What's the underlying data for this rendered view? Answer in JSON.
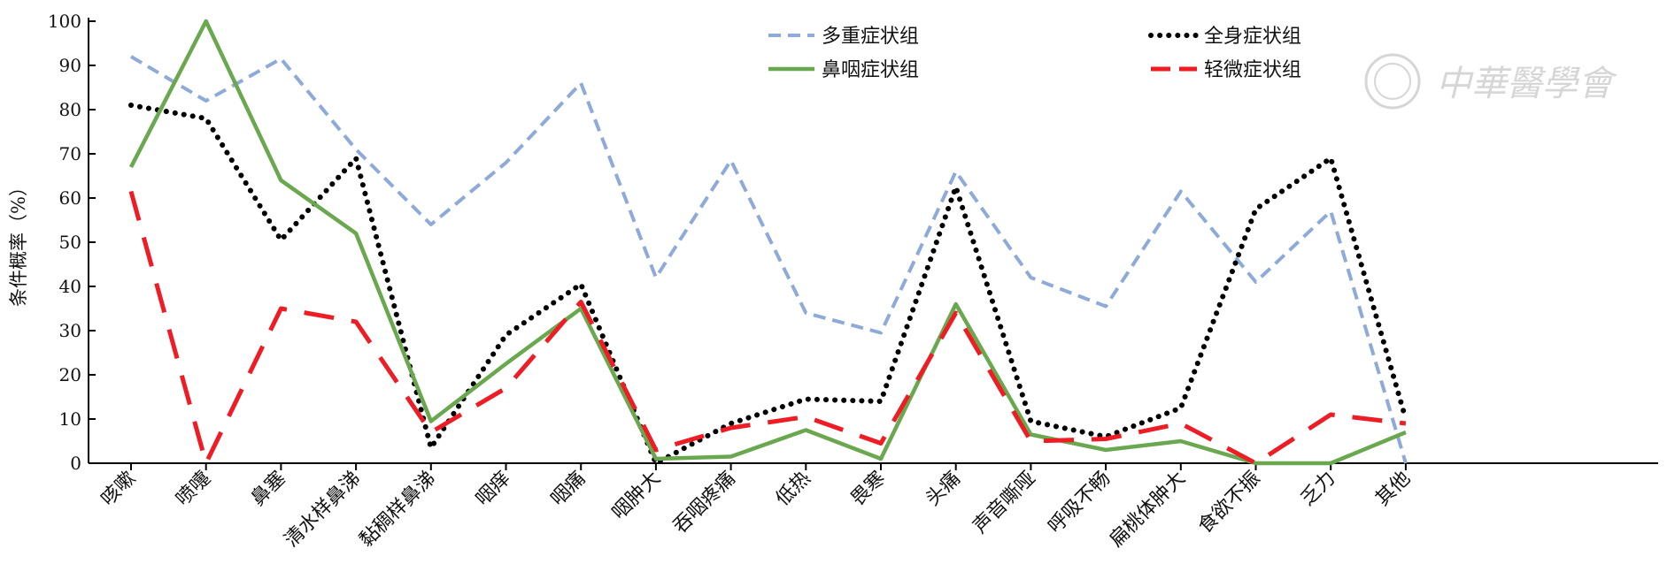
{
  "chart_data": {
    "type": "line",
    "ylabel": "条件概率（%）",
    "ylim": [
      0,
      100
    ],
    "yticks": [
      0,
      10,
      20,
      30,
      40,
      50,
      60,
      70,
      80,
      90,
      100
    ],
    "categories": [
      "咳嗽",
      "喷嚏",
      "鼻塞",
      "清水样鼻涕",
      "黏稠样鼻涕",
      "咽痒",
      "咽痛",
      "咽肿大",
      "吞咽疼痛",
      "低热",
      "畏寒",
      "头痛",
      "声音嘶哑",
      "呼吸不畅",
      "扁桃体肿大",
      "食欲不振",
      "乏力",
      "其他"
    ],
    "legend_position": "top-center",
    "grid": false,
    "series": [
      {
        "name": "多重症状组",
        "color": "#8eaad8",
        "style": "dashed",
        "values": [
          92,
          82,
          91.5,
          71,
          54,
          68,
          86,
          42,
          68.5,
          34,
          29.5,
          66,
          42,
          35.5,
          61.5,
          41,
          57,
          0
        ]
      },
      {
        "name": "全身症状组",
        "color": "#000000",
        "style": "dotted",
        "values": [
          81,
          78,
          50.5,
          69,
          3.5,
          29,
          40.5,
          0,
          9,
          14.5,
          14,
          62.5,
          9.5,
          6,
          12.5,
          57.5,
          69,
          10
        ]
      },
      {
        "name": "鼻咽症状组",
        "color": "#6aa84f",
        "style": "solid",
        "values": [
          67,
          100,
          64,
          52,
          9.5,
          22.5,
          35,
          1,
          1.5,
          7.5,
          1,
          36,
          6.5,
          3,
          5,
          0,
          0,
          7
        ]
      },
      {
        "name": "轻微症状组",
        "color": "#ee1c25",
        "style": "longdash",
        "values": [
          61.5,
          0,
          35,
          32,
          7,
          17,
          36.5,
          3,
          8,
          10.5,
          4.5,
          34,
          5,
          5.5,
          9,
          0,
          11,
          9
        ]
      }
    ]
  },
  "watermark": {
    "text": "中華醫學會"
  }
}
